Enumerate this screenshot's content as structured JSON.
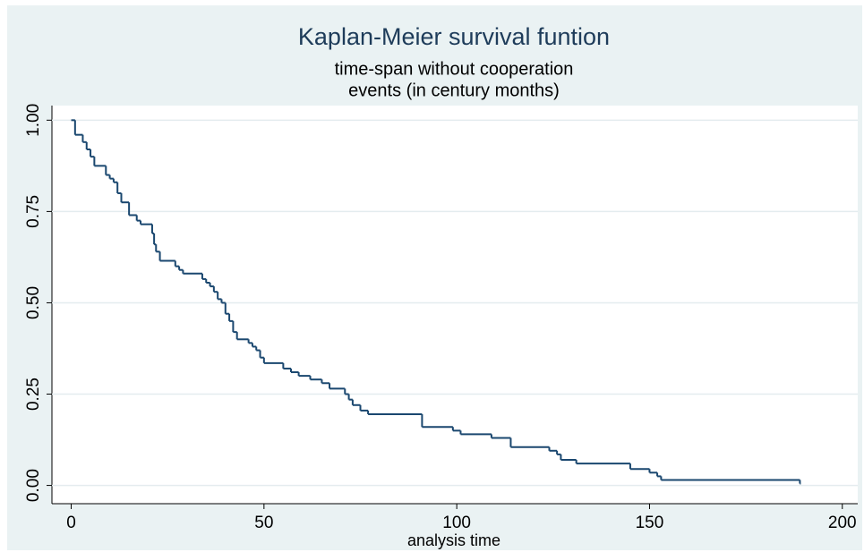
{
  "chart_data": {
    "type": "step",
    "title": "Kaplan-Meier survival funtion",
    "subtitle": [
      "time-span without cooperation",
      "events (in century months)"
    ],
    "x_label": "analysis time",
    "series": [
      {
        "color": "#1a476f",
        "x": [
          0,
          1,
          3,
          4,
          5,
          6,
          9,
          10,
          11,
          12,
          13,
          15,
          17,
          18,
          21,
          21.5,
          22,
          23,
          27,
          28,
          29,
          34,
          35,
          36,
          37,
          38,
          39,
          40,
          41,
          42,
          43,
          46,
          47,
          48,
          49,
          50,
          55,
          57,
          59,
          62,
          65,
          67,
          71,
          72,
          73,
          75,
          77,
          91,
          99,
          101,
          109,
          114,
          124,
          126,
          127,
          131,
          145,
          150,
          152,
          153,
          189
        ],
        "values": [
          1.0,
          0.96,
          0.94,
          0.92,
          0.9,
          0.875,
          0.85,
          0.84,
          0.83,
          0.8,
          0.775,
          0.74,
          0.725,
          0.715,
          0.69,
          0.66,
          0.64,
          0.615,
          0.6,
          0.59,
          0.58,
          0.565,
          0.555,
          0.545,
          0.53,
          0.51,
          0.5,
          0.47,
          0.45,
          0.42,
          0.4,
          0.39,
          0.38,
          0.37,
          0.35,
          0.335,
          0.32,
          0.31,
          0.3,
          0.29,
          0.28,
          0.265,
          0.25,
          0.235,
          0.22,
          0.205,
          0.195,
          0.16,
          0.15,
          0.14,
          0.13,
          0.105,
          0.095,
          0.085,
          0.07,
          0.06,
          0.045,
          0.035,
          0.025,
          0.015,
          0.005
        ]
      }
    ],
    "xlim": [
      -5,
      204
    ],
    "ylim": [
      -0.05,
      1.04
    ],
    "xticks": [
      0,
      50,
      100,
      150,
      200
    ],
    "yticks": [
      {
        "value": 0,
        "label": "0.00"
      },
      {
        "value": 0.25,
        "label": "0.25"
      },
      {
        "value": 0.5,
        "label": "0.50"
      },
      {
        "value": 0.75,
        "label": "0.75"
      },
      {
        "value": 1,
        "label": "1.00"
      }
    ],
    "grid": true
  }
}
